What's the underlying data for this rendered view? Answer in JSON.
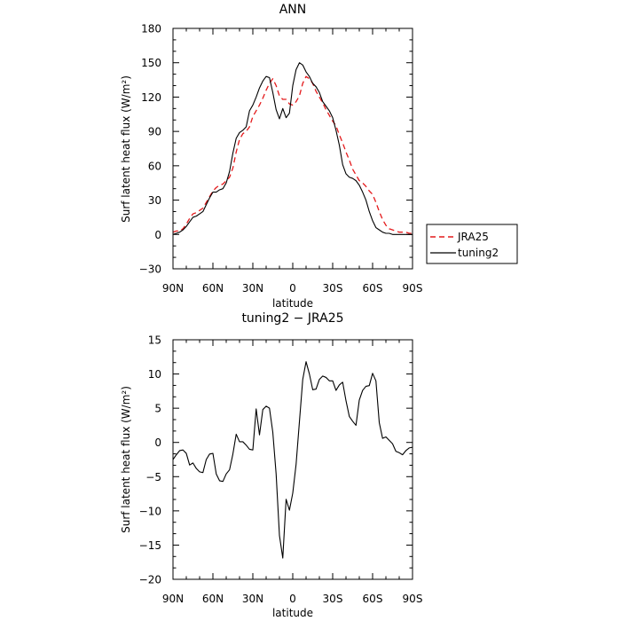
{
  "chart_data": [
    {
      "type": "line",
      "title": "ANN",
      "xlabel": "latitude",
      "ylabel": "Surf latent heat flux (W/m²)",
      "xlim": [
        90,
        -90
      ],
      "ylim": [
        -30,
        180
      ],
      "x_ticks": [
        90,
        60,
        30,
        0,
        -30,
        -60,
        -90
      ],
      "x_tick_labels": [
        "90N",
        "60N",
        "30N",
        "0",
        "30S",
        "60S",
        "90S"
      ],
      "y_ticks": [
        -30,
        0,
        30,
        60,
        90,
        120,
        150,
        180
      ],
      "y_tick_labels": [
        "−30",
        "0",
        "30",
        "60",
        "90",
        "120",
        "150",
        "180"
      ],
      "legend": {
        "placement": "outside-right",
        "entries": [
          "JRA25",
          "tuning2"
        ]
      },
      "series": [
        {
          "name": "JRA25",
          "color": "#e41a1c",
          "dash": "dashed",
          "x": [
            90,
            87.5,
            85,
            82.5,
            80,
            77.5,
            75,
            72.5,
            70,
            67.5,
            65,
            62.5,
            60,
            57.5,
            55,
            52.5,
            50,
            47.5,
            45,
            42.5,
            40,
            37.5,
            35,
            32.5,
            30,
            27.5,
            25,
            22.5,
            20,
            17.5,
            15,
            12.5,
            10,
            7.5,
            5,
            2.5,
            0,
            -2.5,
            -5,
            -7.5,
            -10,
            -12.5,
            -15,
            -17.5,
            -20,
            -22.5,
            -25,
            -27.5,
            -30,
            -32.5,
            -35,
            -37.5,
            -40,
            -42.5,
            -45,
            -47.5,
            -50,
            -52.5,
            -55,
            -57.5,
            -60,
            -62.5,
            -65,
            -67.5,
            -70,
            -72.5,
            -75,
            -77.5,
            -80,
            -82.5,
            -85,
            -87.5,
            -90
          ],
          "y": [
            2,
            3,
            3,
            5,
            9,
            14,
            18,
            19,
            21,
            23,
            28,
            33,
            38,
            41,
            43,
            44,
            47,
            50,
            58,
            72,
            83,
            88,
            90,
            94,
            103,
            108,
            113,
            119,
            126,
            132,
            136,
            130,
            121,
            118,
            118,
            114,
            113,
            116,
            121,
            132,
            138,
            136,
            132,
            125,
            120,
            115,
            109,
            104,
            99,
            95,
            87,
            80,
            72,
            65,
            57,
            52,
            47,
            45,
            42,
            38,
            35,
            28,
            20,
            13,
            8,
            5,
            4,
            3,
            2,
            2,
            2,
            1,
            1
          ]
        },
        {
          "name": "tuning2",
          "color": "#000000",
          "dash": "solid",
          "x": [
            90,
            87.5,
            85,
            82.5,
            80,
            77.5,
            75,
            72.5,
            70,
            67.5,
            65,
            62.5,
            60,
            57.5,
            55,
            52.5,
            50,
            47.5,
            45,
            42.5,
            40,
            37.5,
            35,
            32.5,
            30,
            27.5,
            25,
            22.5,
            20,
            17.5,
            15,
            12.5,
            10,
            7.5,
            5,
            2.5,
            0,
            -2.5,
            -5,
            -7.5,
            -10,
            -12.5,
            -15,
            -17.5,
            -20,
            -22.5,
            -25,
            -27.5,
            -30,
            -32.5,
            -35,
            -37.5,
            -40,
            -42.5,
            -45,
            -47.5,
            -50,
            -52.5,
            -55,
            -57.5,
            -60,
            -62.5,
            -65,
            -67.5,
            -70,
            -72.5,
            -75,
            -77.5,
            -80,
            -82.5,
            -85,
            -87.5,
            -90
          ],
          "y": [
            0,
            1,
            2,
            4,
            7,
            11,
            15,
            16,
            18,
            20,
            26,
            32,
            37,
            37,
            39,
            40,
            45,
            55,
            71,
            84,
            89,
            91,
            94,
            108,
            113,
            120,
            128,
            134,
            138,
            137,
            124,
            109,
            101,
            110,
            102,
            106,
            130,
            144,
            150,
            148,
            142,
            138,
            132,
            129,
            124,
            116,
            112,
            108,
            102,
            91,
            78,
            61,
            53,
            50,
            49,
            47,
            43,
            37,
            30,
            20,
            12,
            6,
            4,
            2,
            1,
            1,
            0,
            0,
            0,
            0,
            0,
            0,
            0
          ]
        }
      ]
    },
    {
      "type": "line",
      "title": "tuning2 − JRA25",
      "xlabel": "latitude",
      "ylabel": "Surf latent heat flux (W/m²)",
      "xlim": [
        90,
        -90
      ],
      "ylim": [
        -20,
        15
      ],
      "x_ticks": [
        90,
        60,
        30,
        0,
        -30,
        -60,
        -90
      ],
      "x_tick_labels": [
        "90N",
        "60N",
        "30N",
        "0",
        "30S",
        "60S",
        "90S"
      ],
      "y_ticks": [
        -20,
        -15,
        -10,
        -5,
        0,
        5,
        10,
        15
      ],
      "y_tick_labels": [
        "−20",
        "−15",
        "−10",
        "−5",
        "0",
        "5",
        "10",
        "15"
      ],
      "series": [
        {
          "color": "#000000",
          "dash": "solid",
          "x": [
            90,
            87.5,
            85,
            82.5,
            80,
            77.5,
            75,
            72.5,
            70,
            67.5,
            65,
            62.5,
            60,
            57.5,
            55,
            52.5,
            50,
            47.5,
            45,
            42.5,
            40,
            37.5,
            35,
            32.5,
            30,
            27.5,
            25,
            22.5,
            20,
            17.5,
            15,
            12.5,
            10,
            7.5,
            5,
            2.5,
            0,
            -2.5,
            -5,
            -7.5,
            -10,
            -12.5,
            -15,
            -17.5,
            -20,
            -22.5,
            -25,
            -27.5,
            -30,
            -32.5,
            -35,
            -37.5,
            -40,
            -42.5,
            -45,
            -47.5,
            -50,
            -52.5,
            -55,
            -57.5,
            -60,
            -62.5,
            -65,
            -67.5,
            -70,
            -72.5,
            -75,
            -77.5,
            -80,
            -82.5,
            -85,
            -87.5,
            -90
          ],
          "y": [
            -2.5,
            -1.8,
            -1.2,
            -1.1,
            -1.6,
            -3.3,
            -3.0,
            -3.8,
            -4.3,
            -4.4,
            -2.5,
            -1.7,
            -1.6,
            -4.6,
            -5.6,
            -5.7,
            -4.6,
            -4.0,
            -1.7,
            1.2,
            0.1,
            0.1,
            -0.4,
            -1.0,
            -1.1,
            4.9,
            1.1,
            4.8,
            5.3,
            5.0,
            1.5,
            -4.6,
            -13.6,
            -16.9,
            -8.3,
            -9.9,
            -7.4,
            -3.2,
            3.0,
            9.2,
            11.8,
            10.0,
            7.7,
            7.8,
            9.2,
            9.7,
            9.5,
            9.0,
            9.0,
            7.6,
            8.4,
            8.8,
            6.1,
            3.8,
            3.1,
            2.5,
            6.2,
            7.6,
            8.2,
            8.3,
            10.1,
            9.0,
            2.9,
            0.6,
            0.8,
            0.3,
            -0.2,
            -1.3,
            -1.5,
            -1.8,
            -1.2,
            -0.8,
            -0.7
          ]
        }
      ]
    }
  ]
}
